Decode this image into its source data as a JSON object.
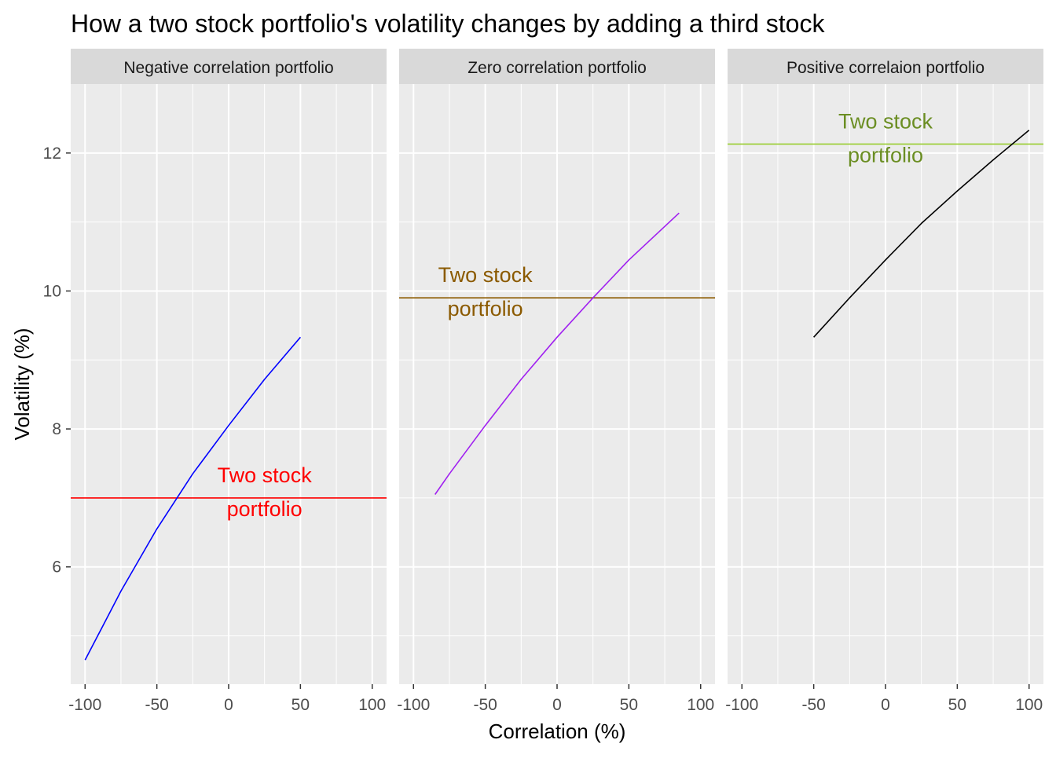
{
  "chart_data": {
    "type": "line",
    "title": "How a two stock portfolio's volatility changes by adding a third stock",
    "xlabel": "Correlation (%)",
    "ylabel": "Volatility (%)",
    "xlim": [
      -110,
      110
    ],
    "ylim": [
      4.3,
      13.0
    ],
    "x_ticks": [
      -100,
      -50,
      0,
      50,
      100
    ],
    "x_tick_labels": [
      "-100",
      "-50",
      "0",
      "50",
      "100"
    ],
    "y_ticks": [
      6,
      8,
      10,
      12
    ],
    "y_tick_labels": [
      "6",
      "8",
      "10",
      "12"
    ],
    "grid": true,
    "legend": "none",
    "panels": [
      {
        "strip": "Negative correlation portfolio",
        "series": [
          {
            "color": "#0000ff",
            "x": [
              -100,
              -75,
              -50,
              -25,
              0,
              25,
              50
            ],
            "y": [
              4.65,
              5.65,
              6.55,
              7.35,
              8.05,
              8.72,
              9.33
            ]
          }
        ],
        "hline": {
          "y": 7.0,
          "color": "#ff0000"
        },
        "annotation": {
          "lines": [
            "Two stock",
            "portfolio"
          ],
          "x": 25,
          "y": 7.0,
          "color": "#ff0000"
        }
      },
      {
        "strip": "Zero correlation portfolio",
        "series": [
          {
            "color": "#a020f0",
            "x": [
              -85,
              -75,
              -50,
              -25,
              0,
              25,
              50,
              85
            ],
            "y": [
              7.05,
              7.35,
              8.05,
              8.72,
              9.33,
              9.9,
              10.45,
              11.13
            ]
          }
        ],
        "hline": {
          "y": 9.9,
          "color": "#8b5a00"
        },
        "annotation": {
          "lines": [
            "Two stock",
            "portfolio"
          ],
          "x": -50,
          "y": 9.9,
          "color": "#8b5a00"
        }
      },
      {
        "strip": "Positive correlaion portfolio",
        "series": [
          {
            "color": "#000000",
            "x": [
              -50,
              -25,
              0,
              25,
              50,
              75,
              100
            ],
            "y": [
              9.33,
              9.9,
              10.45,
              10.98,
              11.45,
              11.9,
              12.33
            ]
          }
        ],
        "hline": {
          "y": 12.13,
          "color": "#9acd32"
        },
        "annotation": {
          "lines": [
            "Two stock",
            "portfolio"
          ],
          "x": 0,
          "y": 12.13,
          "color": "#6b8e23"
        }
      }
    ]
  }
}
